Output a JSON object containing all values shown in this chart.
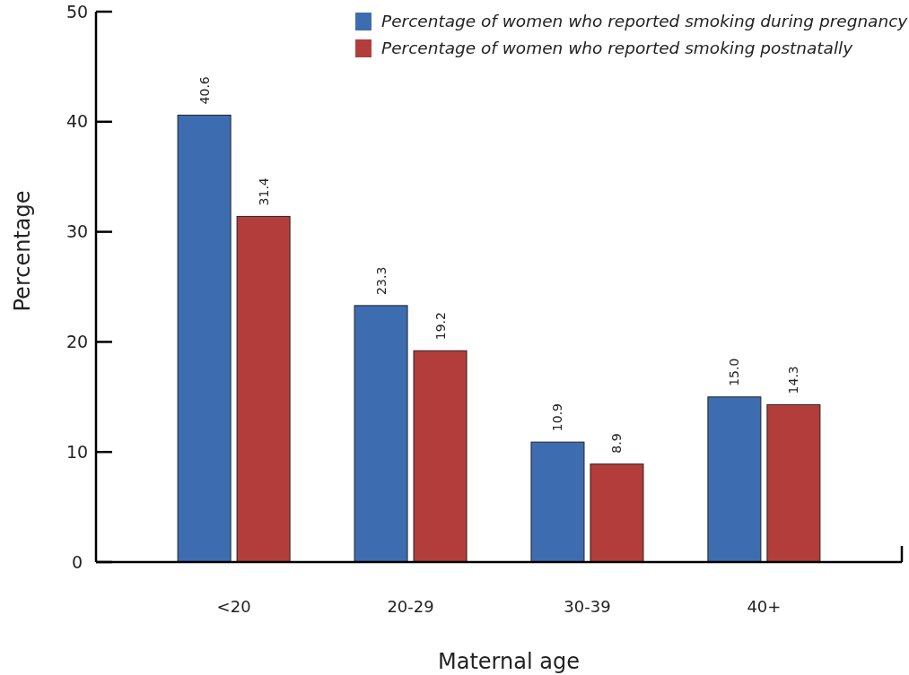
{
  "chart_data": {
    "type": "bar",
    "xlabel": "Maternal age",
    "ylabel": "Percentage",
    "categories": [
      "<20",
      "20-29",
      "30-39",
      "40+"
    ],
    "series": [
      {
        "name": "Percentage of women who reported smoking during pregnancy",
        "color": "#3d6db0",
        "values": [
          40.6,
          23.3,
          10.9,
          15.0
        ],
        "value_labels": [
          "40.6",
          "23.3",
          "10.9",
          "15.0"
        ]
      },
      {
        "name": "Percentage of women who reported smoking postnatally",
        "color": "#b33d3b",
        "values": [
          31.4,
          19.2,
          8.9,
          14.3
        ],
        "value_labels": [
          "31.4",
          "19.2",
          "8.9",
          "14.3"
        ]
      }
    ],
    "ylim": [
      0,
      50
    ],
    "yticks": [
      0,
      10,
      20,
      30,
      40,
      50
    ],
    "grid": false,
    "legend": "top right"
  }
}
